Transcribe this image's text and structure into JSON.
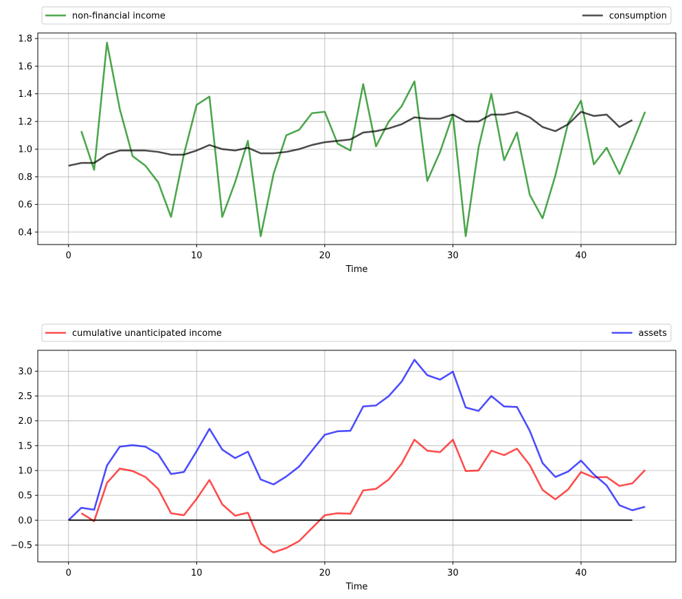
{
  "chart_data": [
    {
      "type": "line",
      "xlabel": "Time",
      "ylabel": "",
      "xlim": [
        -2.4,
        47.4
      ],
      "ylim": [
        0.31,
        1.84
      ],
      "xticks": [
        0,
        10,
        20,
        30,
        40
      ],
      "yticks": [
        0.4,
        0.6,
        0.8,
        1.0,
        1.2,
        1.4,
        1.6,
        1.8
      ],
      "ytick_format": 1,
      "grid": true,
      "legend_placement": "above-plot",
      "series": [
        {
          "name": "non-financial income",
          "color": "#008000",
          "x": [
            1,
            2,
            3,
            4,
            5,
            6,
            7,
            8,
            9,
            10,
            11,
            12,
            13,
            14,
            15,
            16,
            17,
            18,
            19,
            20,
            21,
            22,
            23,
            24,
            25,
            26,
            27,
            28,
            29,
            30,
            31,
            32,
            33,
            34,
            35,
            36,
            37,
            38,
            39,
            40,
            41,
            42,
            43,
            44,
            45
          ],
          "values": [
            1.13,
            0.85,
            1.77,
            1.29,
            0.95,
            0.88,
            0.76,
            0.51,
            0.96,
            1.32,
            1.38,
            0.51,
            0.76,
            1.06,
            0.37,
            0.82,
            1.1,
            1.14,
            1.26,
            1.27,
            1.04,
            0.99,
            1.47,
            1.02,
            1.2,
            1.31,
            1.49,
            0.77,
            0.98,
            1.25,
            0.37,
            1.01,
            1.4,
            0.92,
            1.12,
            0.67,
            0.5,
            0.81,
            1.19,
            1.35,
            0.89,
            1.01,
            0.82,
            1.04,
            1.27
          ]
        },
        {
          "name": "consumption",
          "color": "#000000",
          "x": [
            0,
            1,
            2,
            3,
            4,
            5,
            6,
            7,
            8,
            9,
            10,
            11,
            12,
            13,
            14,
            15,
            16,
            17,
            18,
            19,
            20,
            21,
            22,
            23,
            24,
            25,
            26,
            27,
            28,
            29,
            30,
            31,
            32,
            33,
            34,
            35,
            36,
            37,
            38,
            39,
            40,
            41,
            42,
            43,
            44
          ],
          "values": [
            0.88,
            0.9,
            0.9,
            0.96,
            0.99,
            0.99,
            0.99,
            0.98,
            0.96,
            0.96,
            0.99,
            1.03,
            1.0,
            0.99,
            1.01,
            0.97,
            0.97,
            0.98,
            1.0,
            1.03,
            1.05,
            1.06,
            1.07,
            1.12,
            1.13,
            1.15,
            1.18,
            1.23,
            1.22,
            1.22,
            1.25,
            1.2,
            1.2,
            1.25,
            1.25,
            1.27,
            1.23,
            1.16,
            1.13,
            1.18,
            1.27,
            1.24,
            1.25,
            1.16,
            1.21
          ]
        }
      ]
    },
    {
      "type": "line",
      "xlabel": "Time",
      "ylabel": "",
      "xlim": [
        -2.4,
        47.4
      ],
      "ylim": [
        -0.84,
        3.42
      ],
      "xticks": [
        0,
        10,
        20,
        30,
        40
      ],
      "yticks": [
        -0.5,
        0.0,
        0.5,
        1.0,
        1.5,
        2.0,
        2.5,
        3.0
      ],
      "ytick_format": 1,
      "grid": true,
      "legend_placement": "above-plot",
      "series": [
        {
          "name": "cumulative unanticipated income",
          "color": "#ff0000",
          "x": [
            1,
            2,
            3,
            4,
            5,
            6,
            7,
            8,
            9,
            10,
            11,
            12,
            13,
            14,
            15,
            16,
            17,
            18,
            19,
            20,
            21,
            22,
            23,
            24,
            25,
            26,
            27,
            28,
            29,
            30,
            31,
            32,
            33,
            34,
            35,
            36,
            37,
            38,
            39,
            40,
            41,
            42,
            43,
            44,
            45
          ],
          "values": [
            0.14,
            -0.02,
            0.75,
            1.04,
            0.99,
            0.87,
            0.63,
            0.14,
            0.1,
            0.43,
            0.81,
            0.32,
            0.09,
            0.15,
            -0.47,
            -0.65,
            -0.56,
            -0.42,
            -0.16,
            0.1,
            0.14,
            0.13,
            0.6,
            0.63,
            0.82,
            1.14,
            1.62,
            1.4,
            1.37,
            1.62,
            0.99,
            1.0,
            1.4,
            1.31,
            1.44,
            1.11,
            0.61,
            0.42,
            0.62,
            0.97,
            0.86,
            0.87,
            0.69,
            0.74,
            1.01
          ]
        },
        {
          "name": "assets",
          "color": "#0000ff",
          "x": [
            0,
            1,
            2,
            3,
            4,
            5,
            6,
            7,
            8,
            9,
            10,
            11,
            12,
            13,
            14,
            15,
            16,
            17,
            18,
            19,
            20,
            21,
            22,
            23,
            24,
            25,
            26,
            27,
            28,
            29,
            30,
            31,
            32,
            33,
            34,
            35,
            36,
            37,
            38,
            39,
            40,
            41,
            42,
            43,
            44,
            45
          ],
          "values": [
            0.0,
            0.25,
            0.21,
            1.1,
            1.48,
            1.51,
            1.48,
            1.33,
            0.93,
            0.97,
            1.39,
            1.84,
            1.42,
            1.25,
            1.38,
            0.82,
            0.72,
            0.88,
            1.08,
            1.4,
            1.72,
            1.79,
            1.8,
            2.29,
            2.31,
            2.5,
            2.79,
            3.23,
            2.92,
            2.83,
            2.99,
            2.27,
            2.2,
            2.5,
            2.29,
            2.28,
            1.8,
            1.15,
            0.87,
            0.98,
            1.2,
            0.92,
            0.7,
            0.3,
            0.2,
            0.27
          ]
        },
        {
          "name": "",
          "color": "#000000",
          "x": [
            0,
            44
          ],
          "values": [
            0,
            0
          ]
        }
      ]
    }
  ]
}
